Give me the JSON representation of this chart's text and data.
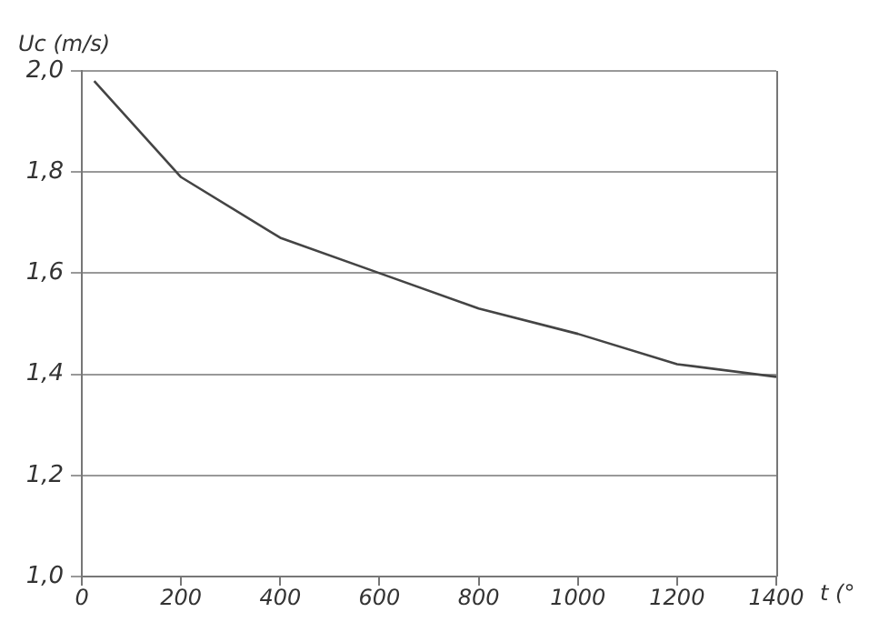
{
  "chart_data": {
    "type": "line",
    "ylabel": "Uc (m/s)",
    "xlabel": "t (°",
    "x": [
      25,
      200,
      400,
      600,
      800,
      1000,
      1200,
      1400
    ],
    "series": [
      {
        "color": "#444444",
        "values": [
          1.98,
          1.79,
          1.67,
          1.6,
          1.53,
          1.48,
          1.42,
          1.395
        ]
      }
    ],
    "xlim": [
      0,
      1400
    ],
    "xticks": [
      0,
      200,
      400,
      600,
      800,
      1000,
      1200,
      1400
    ],
    "ylim": [
      1.0,
      2.0
    ],
    "yticks": [
      {
        "value": 1.0,
        "label": "1,0"
      },
      {
        "value": 1.2,
        "label": "1,2"
      },
      {
        "value": 1.4,
        "label": "1,4"
      },
      {
        "value": 1.6,
        "label": "1,6"
      },
      {
        "value": 1.8,
        "label": "1,8"
      },
      {
        "value": 2.0,
        "label": "2,0"
      }
    ],
    "grid": "y",
    "legend": false,
    "marker": "none",
    "line_style": "solid"
  }
}
